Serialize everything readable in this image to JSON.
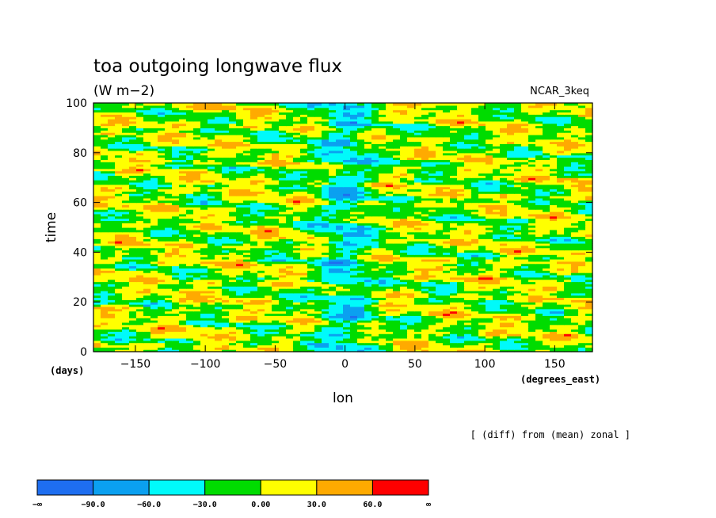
{
  "chart_data": {
    "type": "heatmap",
    "title": "toa outgoing longwave flux",
    "units": "(W m−2)",
    "model": "NCAR_3keq",
    "xlabel": "lon",
    "ylabel": "time",
    "x_unit": "(degrees_east)",
    "y_unit": "(days)",
    "xlim": [
      -180,
      177
    ],
    "ylim": [
      0,
      100
    ],
    "xticks": [
      -150,
      -100,
      -50,
      0,
      50,
      100,
      150
    ],
    "yticks": [
      0,
      20,
      40,
      60,
      80,
      100
    ],
    "xtick_labels": [
      "−150",
      "−100",
      "−50",
      "0",
      "50",
      "100",
      "150"
    ],
    "ytick_labels": [
      "0",
      "20",
      "40",
      "60",
      "80",
      "100"
    ],
    "annotation": "[ (diff) from (mean) zonal ]",
    "colorbar": {
      "labels": [
        "−∞",
        "−90.0",
        "−60.0",
        "−30.0",
        "0.00",
        "30.0",
        "60.0",
        "∞"
      ],
      "bounds": [
        null,
        -90,
        -60,
        -30,
        0,
        30,
        60,
        null
      ],
      "colors": [
        "#1e6ef0",
        "#0ba0f0",
        "#00fafa",
        "#00dc00",
        "#ffff00",
        "#ffaa00",
        "#ff0000"
      ]
    },
    "description_of_field": "OLR deviation from zonal mean as a function of longitude and time; negative (blue) anomalies concentrated near 0° longitude, positive (orange/red) streaks elsewhere"
  }
}
